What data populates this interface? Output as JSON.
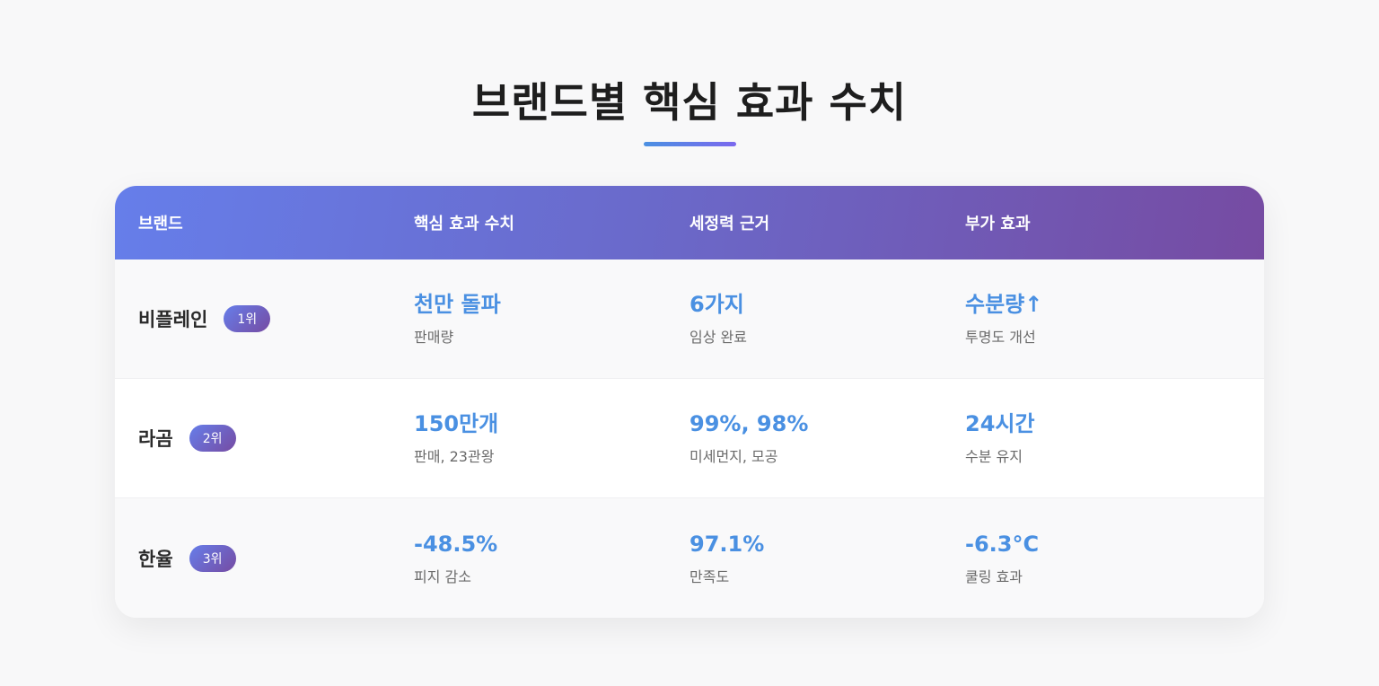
{
  "page": {
    "title": "브랜드별 핵심 효과 수치"
  },
  "colors": {
    "header_gradient_start": "#667eea",
    "header_gradient_end": "#764ba2",
    "value_color": "#4a90e2",
    "underline_start": "#4a90e2",
    "underline_end": "#7b68ee"
  },
  "table": {
    "headers": [
      "브랜드",
      "핵심 효과 수치",
      "세정력 근거",
      "부가 효과"
    ],
    "rows": [
      {
        "brand": "비플레인",
        "rank": "1위",
        "core": {
          "value": "천만 돌파",
          "label": "판매량"
        },
        "cleansing": {
          "value": "6가지",
          "label": "임상 완료"
        },
        "extra": {
          "value": "수분량↑",
          "label": "투명도 개선"
        }
      },
      {
        "brand": "라곰",
        "rank": "2위",
        "core": {
          "value": "150만개",
          "label": "판매, 23관왕"
        },
        "cleansing": {
          "value": "99%, 98%",
          "label": "미세먼지, 모공"
        },
        "extra": {
          "value": "24시간",
          "label": "수분 유지"
        }
      },
      {
        "brand": "한율",
        "rank": "3위",
        "core": {
          "value": "-48.5%",
          "label": "피지 감소"
        },
        "cleansing": {
          "value": "97.1%",
          "label": "만족도"
        },
        "extra": {
          "value": "-6.3°C",
          "label": "쿨링 효과"
        }
      }
    ]
  }
}
